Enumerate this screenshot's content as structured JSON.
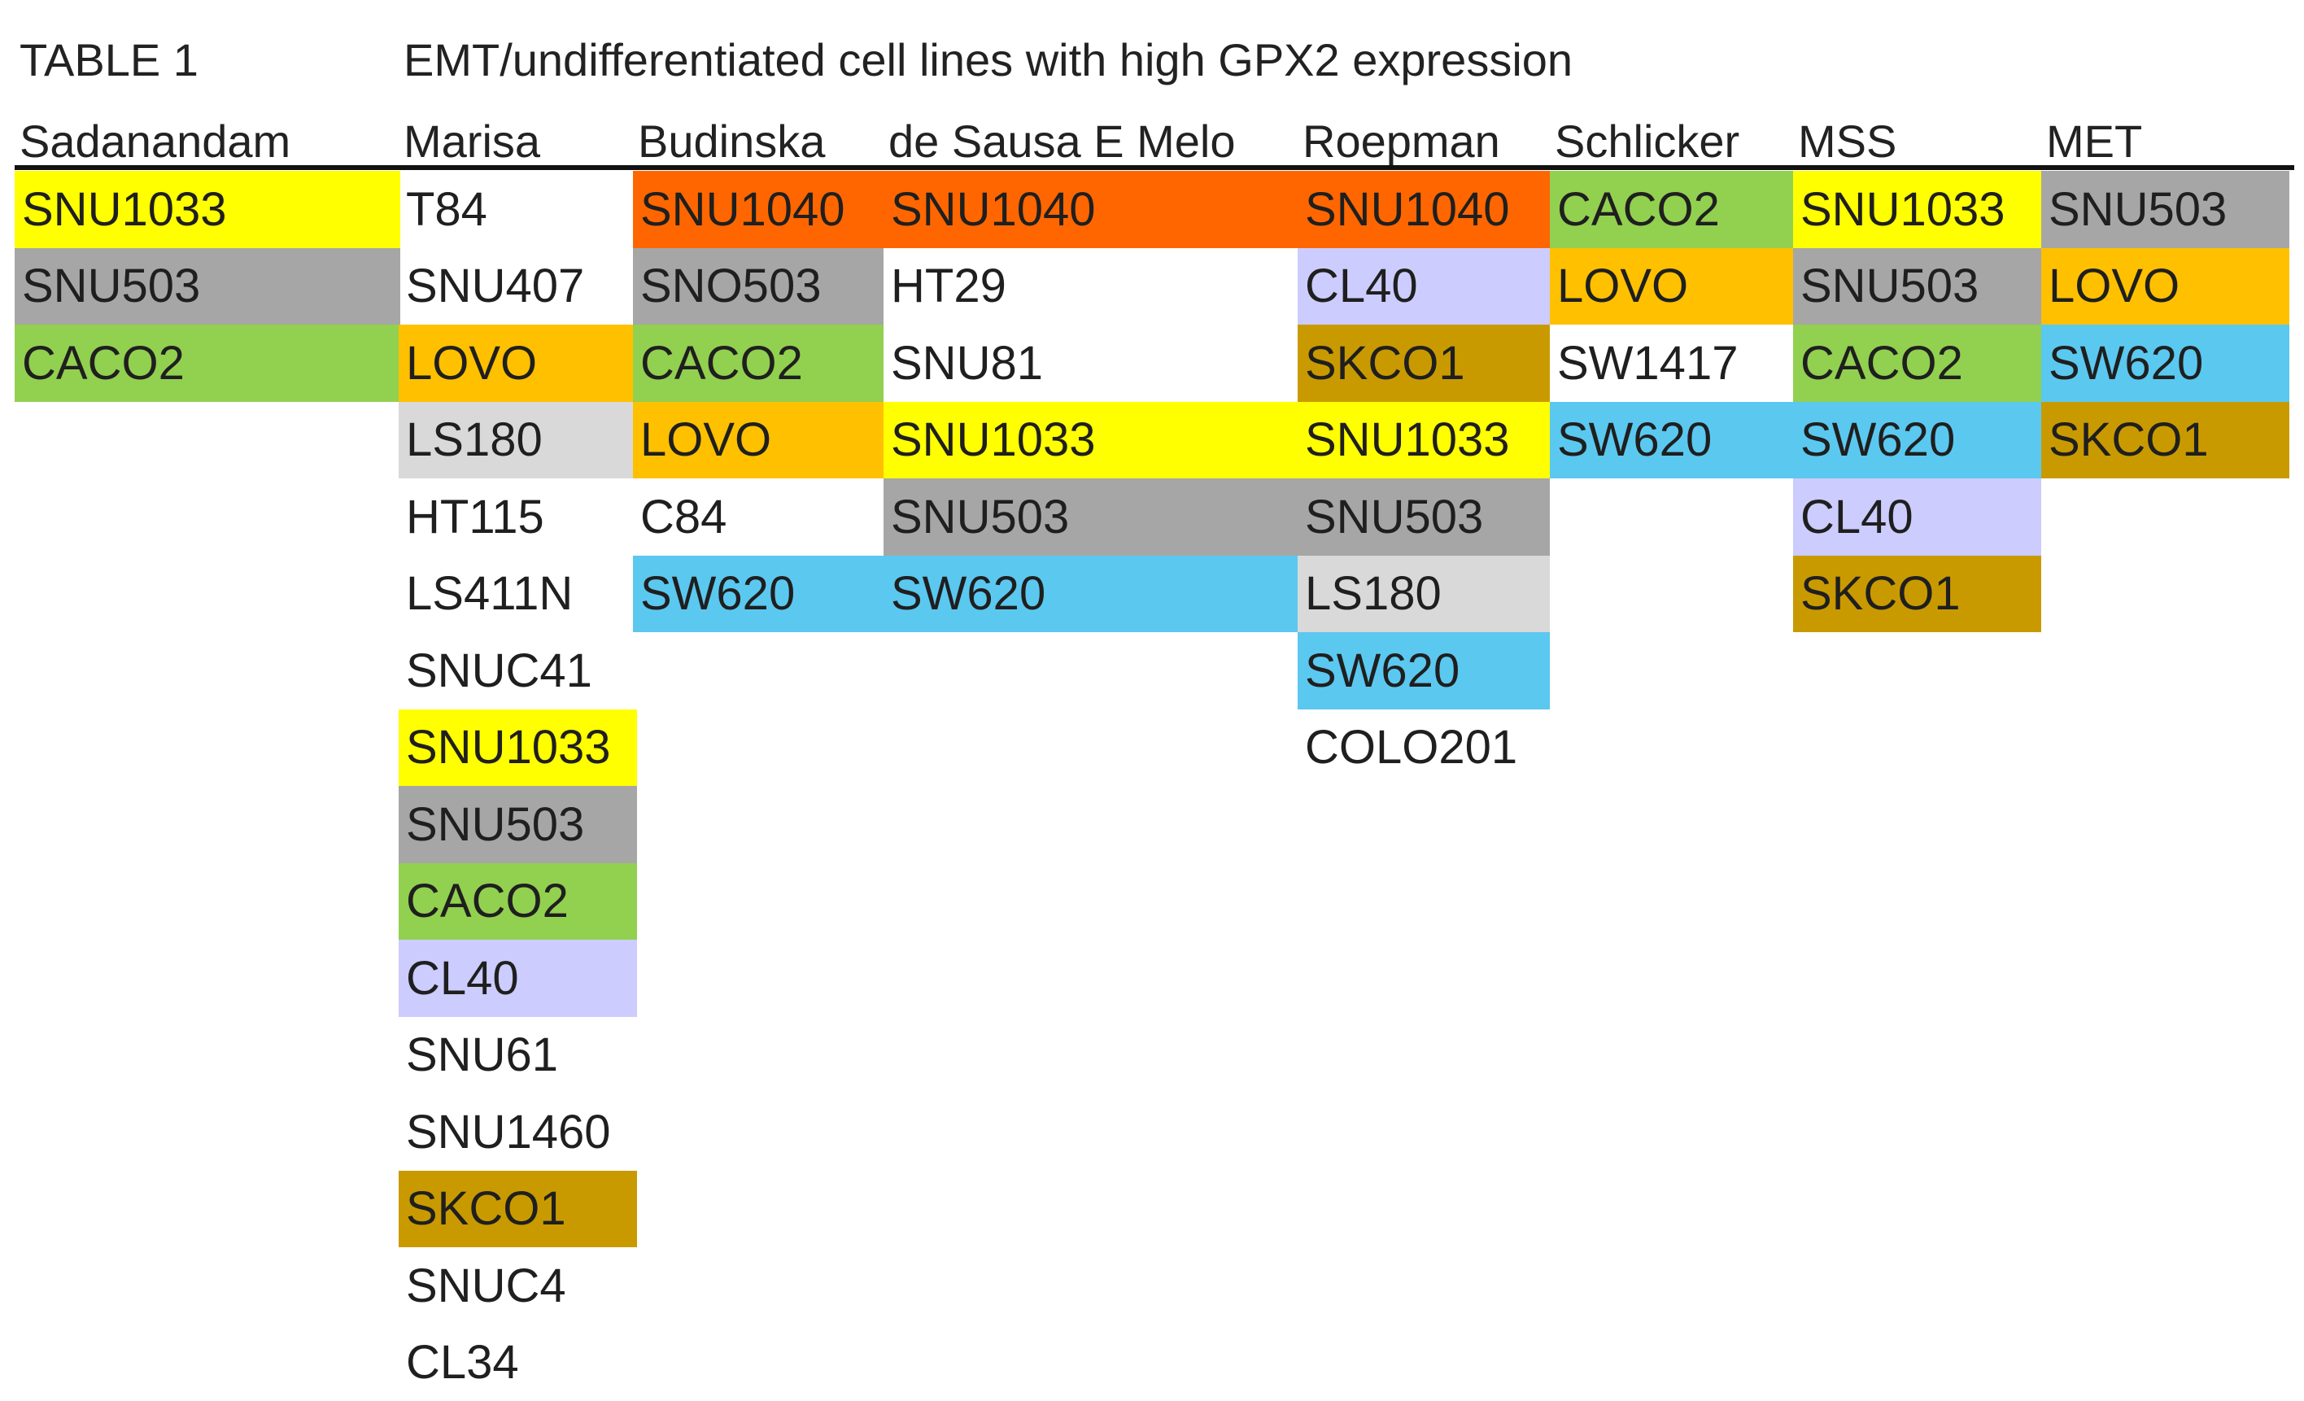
{
  "table_label": "TABLE 1",
  "caption": "EMT/undifferentiated cell lines with high GPX2 expression",
  "palette": {
    "SNU1033": "#ffff00",
    "SNU503": "#a6a6a6",
    "SNO503": "#a6a6a6",
    "CACO2": "#92d050",
    "LOVO": "#ffc000",
    "LS180": "#d9d9d9",
    "CL40": "#ccccff",
    "SKCO1": "#c99a00",
    "SNU1040": "#ff6600",
    "SW620": "#5bc8f0"
  },
  "columns": [
    {
      "header": "Sadanandam",
      "items": [
        "SNU1033",
        "SNU503",
        "CACO2"
      ]
    },
    {
      "header": "Marisa",
      "items": [
        "T84",
        "SNU407",
        "LOVO",
        "LS180",
        "HT115",
        "LS411N",
        "SNUC41",
        "SNU1033",
        "SNU503",
        "CACO2",
        "CL40",
        "SNU61",
        "SNU1460",
        "SKCO1",
        "SNUC4",
        "CL34"
      ]
    },
    {
      "header": "Budinska",
      "items": [
        "SNU1040",
        "SNO503",
        "CACO2",
        "LOVO",
        "C84",
        "SW620"
      ]
    },
    {
      "header": "de Sausa E Melo",
      "items": [
        "SNU1040",
        "HT29",
        "SNU81",
        "SNU1033",
        "SNU503",
        "SW620"
      ]
    },
    {
      "header": "Roepman",
      "items": [
        "SNU1040",
        "CL40",
        "SKCO1",
        "SNU1033",
        "SNU503",
        "LS180",
        "SW620",
        "COLO201"
      ]
    },
    {
      "header": "Schlicker",
      "items": [
        "CACO2",
        "LOVO",
        "SW1417",
        "SW620"
      ]
    },
    {
      "header": "MSS",
      "items": [
        "SNU1033",
        "SNU503",
        "CACO2",
        "SW620",
        "CL40",
        "SKCO1"
      ]
    },
    {
      "header": "MET",
      "items": [
        "SNU503",
        "LOVO",
        "SW620",
        "SKCO1"
      ]
    }
  ]
}
